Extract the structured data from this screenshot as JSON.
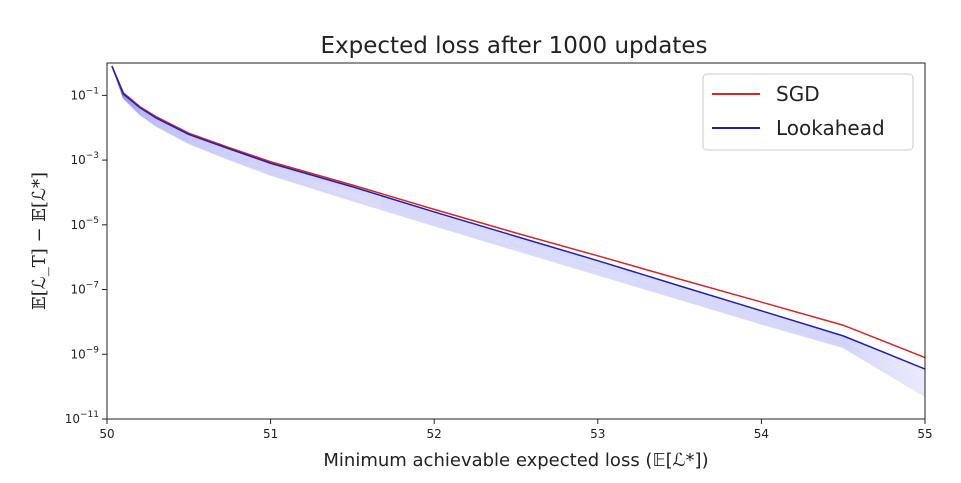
{
  "chart_data": {
    "type": "line",
    "title": "Expected loss after 1000 updates",
    "xlabel": "Minimum achievable expected loss (𝔼[ℒ*])",
    "ylabel": "𝔼[ℒ_T] − 𝔼[ℒ*]",
    "x_ticks": [
      "50",
      "51",
      "52",
      "53",
      "54",
      "55"
    ],
    "y_ticks": [
      {
        "base": "10",
        "exp": "−1",
        "value": 0.1
      },
      {
        "base": "10",
        "exp": "−3",
        "value": 0.001
      },
      {
        "base": "10",
        "exp": "−5",
        "value": 1e-05
      },
      {
        "base": "10",
        "exp": "−7",
        "value": 1e-07
      },
      {
        "base": "10",
        "exp": "−9",
        "value": 1e-09
      },
      {
        "base": "10",
        "exp": "−11",
        "value": 1e-11
      }
    ],
    "xlim": [
      50,
      55
    ],
    "ylim": [
      1e-11,
      1
    ],
    "y_scale": "log",
    "grid": false,
    "legend_position": "top-right",
    "series": [
      {
        "name": "SGD",
        "color": "#d62728",
        "x": [
          50.03,
          50.1,
          50.2,
          50.3,
          50.5,
          50.75,
          51.0,
          51.5,
          52.0,
          52.5,
          53.0,
          53.5,
          54.0,
          54.5,
          55.0
        ],
        "y": [
          0.8,
          0.12,
          0.045,
          0.022,
          0.0068,
          0.0024,
          0.00089,
          0.00017,
          3e-05,
          5.6e-06,
          1.1e-06,
          2.1e-07,
          4.1e-08,
          7.9e-09,
          7.9e-10
        ]
      },
      {
        "name": "Lookahead",
        "color": "#1f1fb4",
        "x": [
          50.03,
          50.1,
          50.2,
          50.3,
          50.5,
          50.75,
          51.0,
          51.5,
          52.0,
          52.5,
          53.0,
          53.5,
          54.0,
          54.5,
          55.0
        ],
        "y": [
          0.8,
          0.11,
          0.042,
          0.02,
          0.0062,
          0.0022,
          0.0008,
          0.00015,
          2.5e-05,
          4.4e-06,
          7.8e-07,
          1.3e-07,
          2.2e-08,
          3.7e-09,
          3.5e-10
        ]
      }
    ],
    "lookahead_band": {
      "color": "#6b6bf0",
      "x": [
        50.03,
        50.1,
        50.2,
        50.3,
        50.5,
        50.75,
        51.0,
        51.5,
        52.0,
        52.5,
        53.0,
        53.5,
        54.0,
        54.5,
        55.0
      ],
      "upper": [
        0.8,
        0.11,
        0.042,
        0.02,
        0.0062,
        0.0022,
        0.0008,
        0.00015,
        2.5e-05,
        4.4e-06,
        7.8e-07,
        1.3e-07,
        2.2e-08,
        3.7e-09,
        3.5e-10
      ],
      "lower": [
        0.8,
        0.08,
        0.025,
        0.011,
        0.0032,
        0.001,
        0.00034,
        5.5e-05,
        9.3e-06,
        1.6e-06,
        2.8e-07,
        4.9e-08,
        8.5e-09,
        1.6e-09,
        5e-11
      ]
    }
  }
}
